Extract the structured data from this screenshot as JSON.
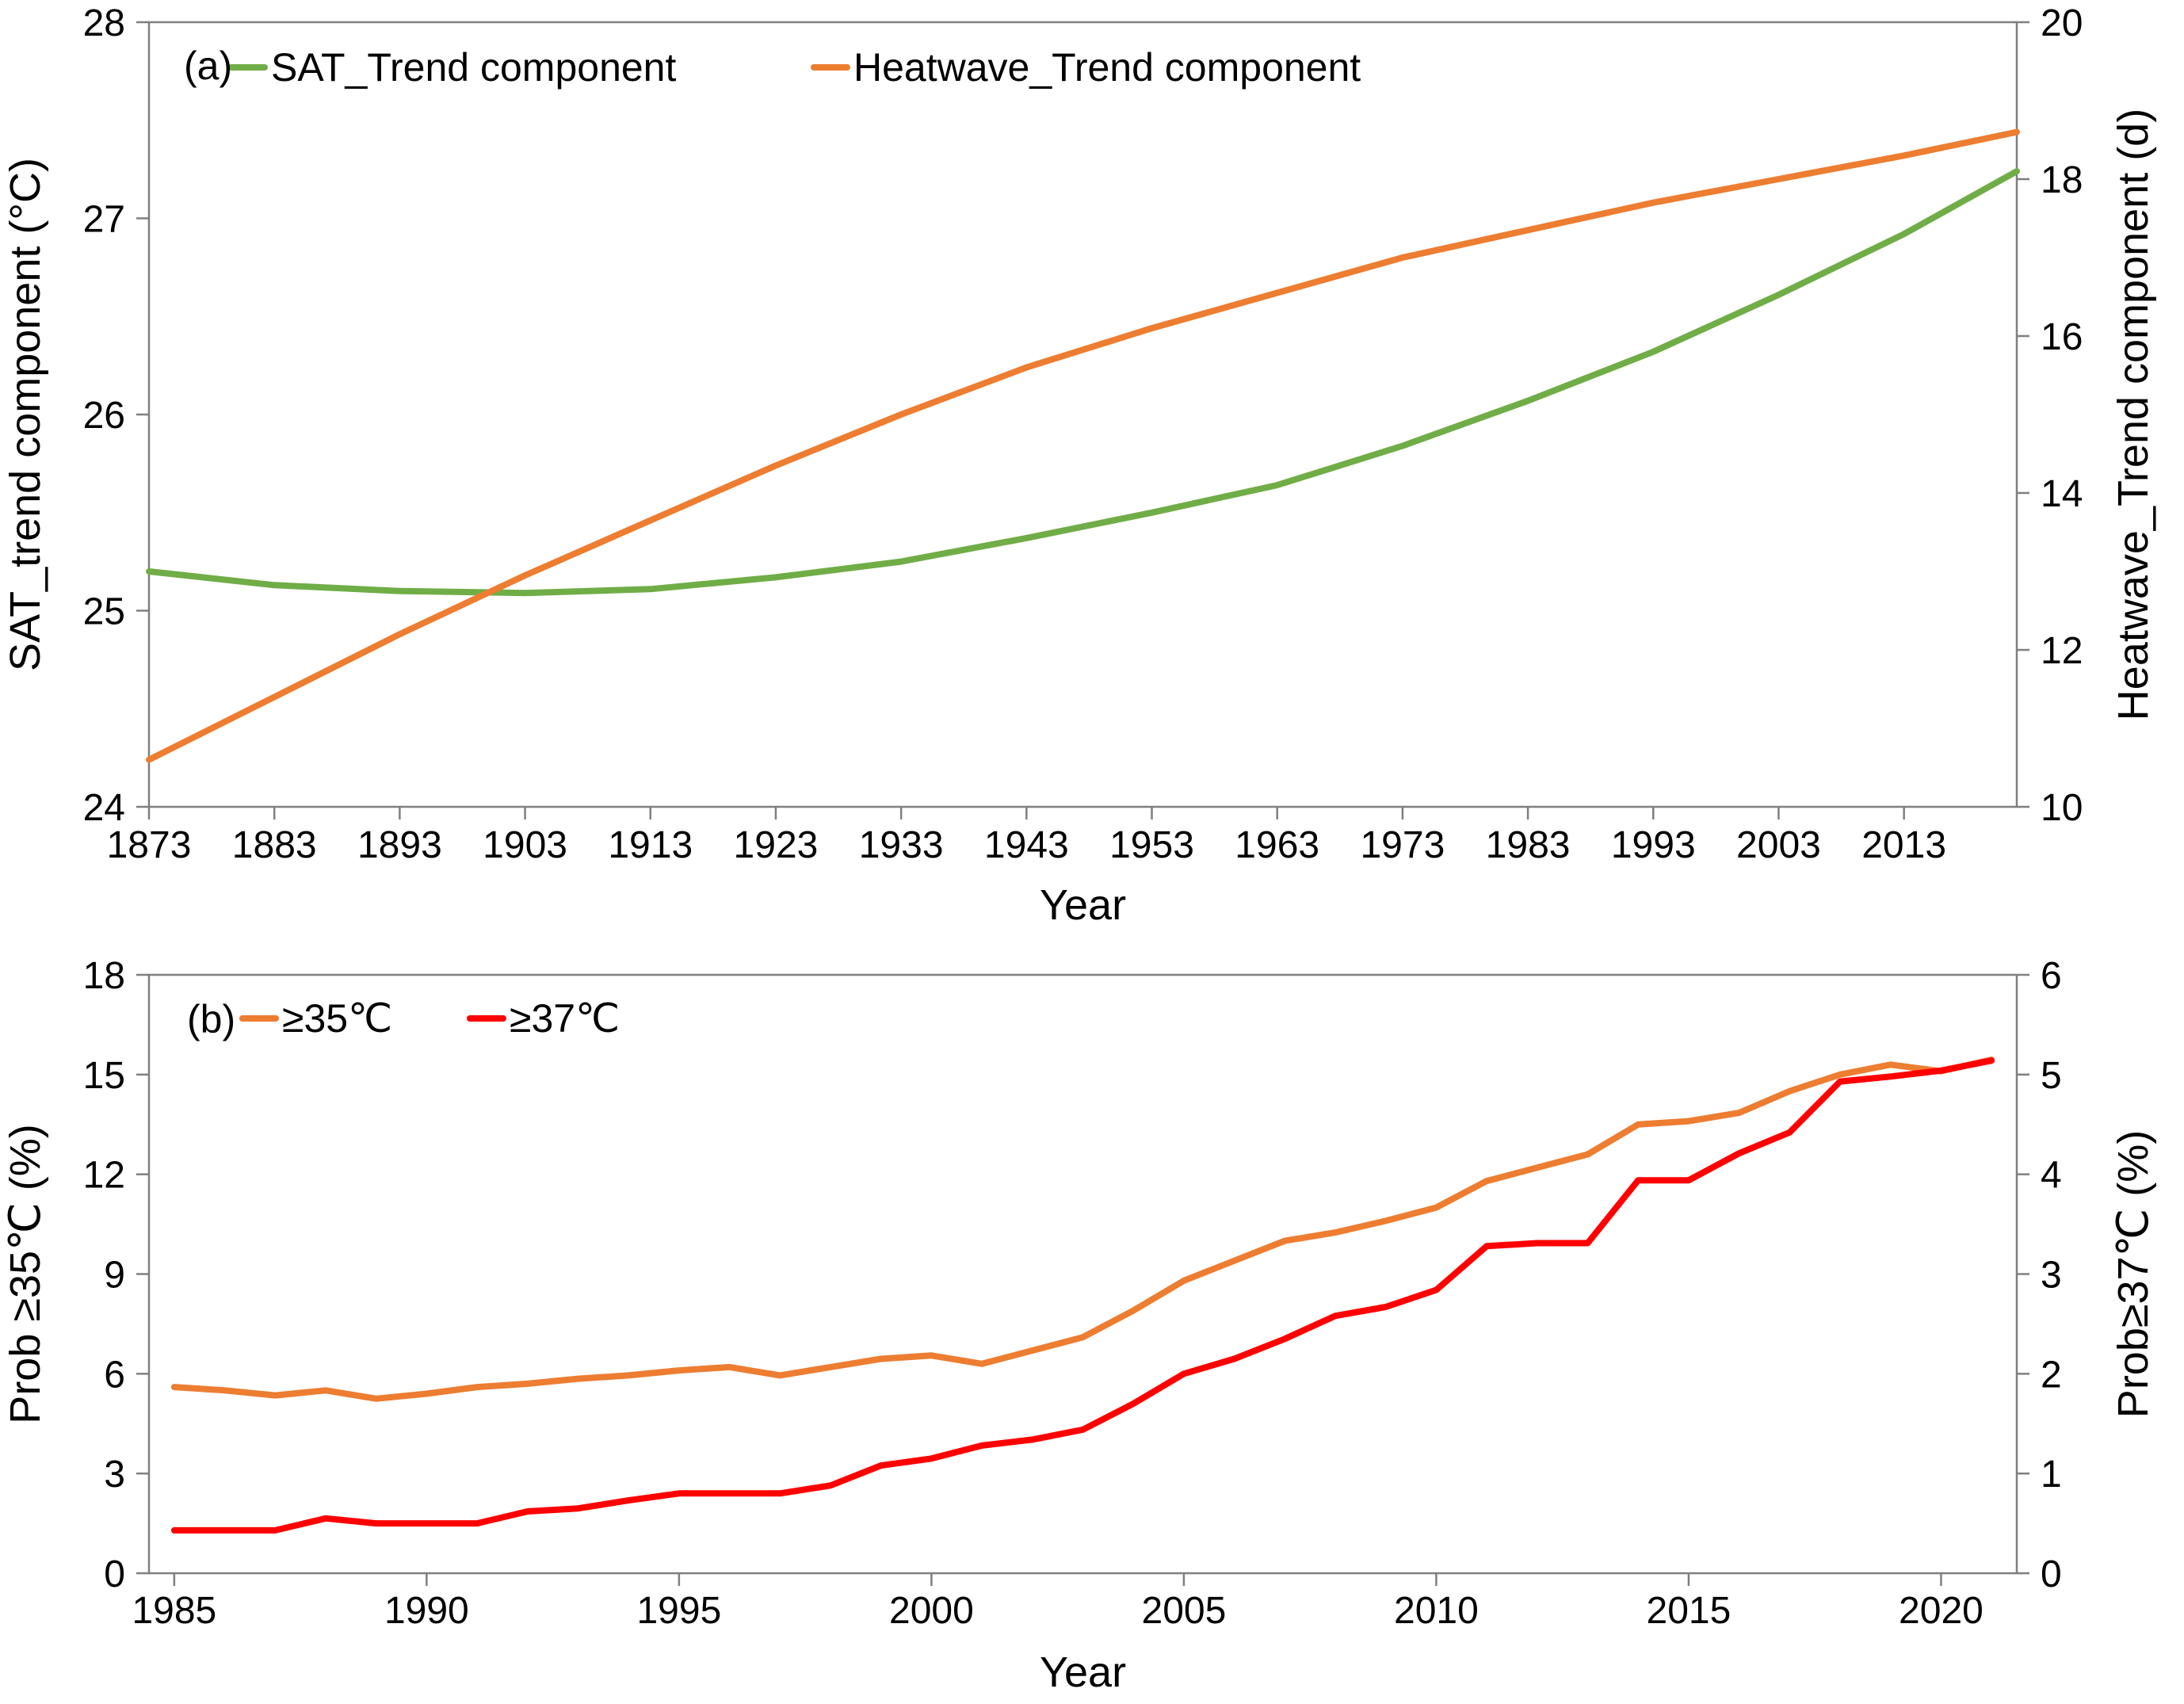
{
  "chart_data": [
    {
      "panel_label": "(a)",
      "type": "line",
      "xlabel": "Year",
      "ylabel_left": "SAT_trend component (°C)",
      "ylabel_right": "Heatwave_Trend component (d)",
      "xlim": [
        1873,
        2022
      ],
      "ylim_left": [
        24,
        28
      ],
      "ylim_right": [
        10,
        20
      ],
      "x_ticks": [
        1873,
        1883,
        1893,
        1903,
        1913,
        1923,
        1933,
        1943,
        1953,
        1963,
        1973,
        1983,
        1993,
        2003,
        2013
      ],
      "x_tick_labels": [
        "1873",
        "1883",
        "1893",
        "1903",
        "1913",
        "1923",
        "1933",
        "1943",
        "1953",
        "1963",
        "1973",
        "1983",
        "1993",
        "2003",
        "2013"
      ],
      "y_ticks_left": [
        24,
        25,
        26,
        27,
        28
      ],
      "y_tick_labels_left": [
        "24",
        "25",
        "26",
        "27",
        "28"
      ],
      "y_ticks_right": [
        10,
        12,
        14,
        16,
        18,
        20
      ],
      "y_tick_labels_right": [
        "10",
        "12",
        "14",
        "16",
        "18",
        "20"
      ],
      "grid": false,
      "legend_position": "top-left",
      "series": [
        {
          "name": "SAT_Trend component",
          "axis": "left",
          "color": "#70ad47",
          "x": [
            1873,
            1883,
            1893,
            1903,
            1913,
            1923,
            1933,
            1943,
            1953,
            1963,
            1973,
            1983,
            1993,
            2003,
            2013,
            2022
          ],
          "values": [
            25.2,
            25.13,
            25.1,
            25.09,
            25.11,
            25.17,
            25.25,
            25.37,
            25.5,
            25.64,
            25.84,
            26.07,
            26.32,
            26.61,
            26.92,
            27.24
          ]
        },
        {
          "name": "Heatwave_Trend component",
          "axis": "right",
          "color": "#ed7d31",
          "x": [
            1873,
            1883,
            1893,
            1903,
            1913,
            1923,
            1933,
            1943,
            1953,
            1963,
            1973,
            1983,
            1993,
            2003,
            2013,
            2022
          ],
          "values": [
            10.6,
            11.4,
            12.2,
            12.95,
            13.65,
            14.35,
            15.0,
            15.6,
            16.1,
            16.55,
            17.0,
            17.35,
            17.7,
            18.0,
            18.3,
            18.6
          ]
        }
      ]
    },
    {
      "panel_label": "(b)",
      "type": "line",
      "xlabel": "Year",
      "ylabel_left": "Prob ≥35℃ (%)",
      "ylabel_right": "Prob≥37℃ (%)",
      "xlim": [
        1984.5,
        2021.5
      ],
      "ylim_left": [
        0,
        18
      ],
      "ylim_right": [
        0,
        6
      ],
      "x_ticks": [
        1985,
        1990,
        1995,
        2000,
        2005,
        2010,
        2015,
        2020
      ],
      "x_tick_labels": [
        "1985",
        "1990",
        "1995",
        "2000",
        "2005",
        "2010",
        "2015",
        "2020"
      ],
      "y_ticks_left": [
        0,
        3,
        6,
        9,
        12,
        15,
        18
      ],
      "y_tick_labels_left": [
        "0",
        "3",
        "6",
        "9",
        "12",
        "15",
        "18"
      ],
      "y_ticks_right": [
        0,
        1,
        2,
        3,
        4,
        5,
        6
      ],
      "y_tick_labels_right": [
        "0",
        "1",
        "2",
        "3",
        "4",
        "5",
        "6"
      ],
      "grid": false,
      "legend_position": "top-left",
      "series": [
        {
          "name": "≥35℃",
          "axis": "left",
          "color": "#ed7d31",
          "x": [
            1985,
            1986,
            1987,
            1988,
            1989,
            1990,
            1991,
            1992,
            1993,
            1994,
            1995,
            1996,
            1997,
            1998,
            1999,
            2000,
            2001,
            2002,
            2003,
            2004,
            2005,
            2006,
            2007,
            2008,
            2009,
            2010,
            2011,
            2012,
            2013,
            2014,
            2015,
            2016,
            2017,
            2018,
            2019,
            2020,
            2021
          ],
          "values": [
            5.6,
            5.5,
            5.35,
            5.5,
            5.25,
            5.4,
            5.6,
            5.7,
            5.85,
            5.95,
            6.1,
            6.2,
            5.95,
            6.2,
            6.45,
            6.55,
            6.3,
            6.7,
            7.1,
            7.9,
            8.8,
            9.4,
            10.0,
            10.25,
            10.6,
            11.0,
            11.8,
            12.2,
            12.6,
            13.5,
            13.6,
            13.85,
            14.5,
            15.0,
            15.3,
            15.1,
            15.45
          ]
        },
        {
          "name": "≥37℃",
          "axis": "right",
          "color": "#ff0000",
          "x": [
            1985,
            1986,
            1987,
            1988,
            1989,
            1990,
            1991,
            1992,
            1993,
            1994,
            1995,
            1996,
            1997,
            1998,
            1999,
            2000,
            2001,
            2002,
            2003,
            2004,
            2005,
            2006,
            2007,
            2008,
            2009,
            2010,
            2011,
            2012,
            2013,
            2014,
            2015,
            2016,
            2017,
            2018,
            2019,
            2020,
            2021
          ],
          "values": [
            0.43,
            0.43,
            0.43,
            0.55,
            0.5,
            0.5,
            0.5,
            0.62,
            0.65,
            0.73,
            0.8,
            0.8,
            0.8,
            0.88,
            1.08,
            1.15,
            1.28,
            1.34,
            1.44,
            1.7,
            2.0,
            2.15,
            2.35,
            2.58,
            2.67,
            2.84,
            3.28,
            3.31,
            3.31,
            3.94,
            3.94,
            4.21,
            4.42,
            4.93,
            4.98,
            5.04,
            5.14
          ]
        }
      ]
    }
  ]
}
